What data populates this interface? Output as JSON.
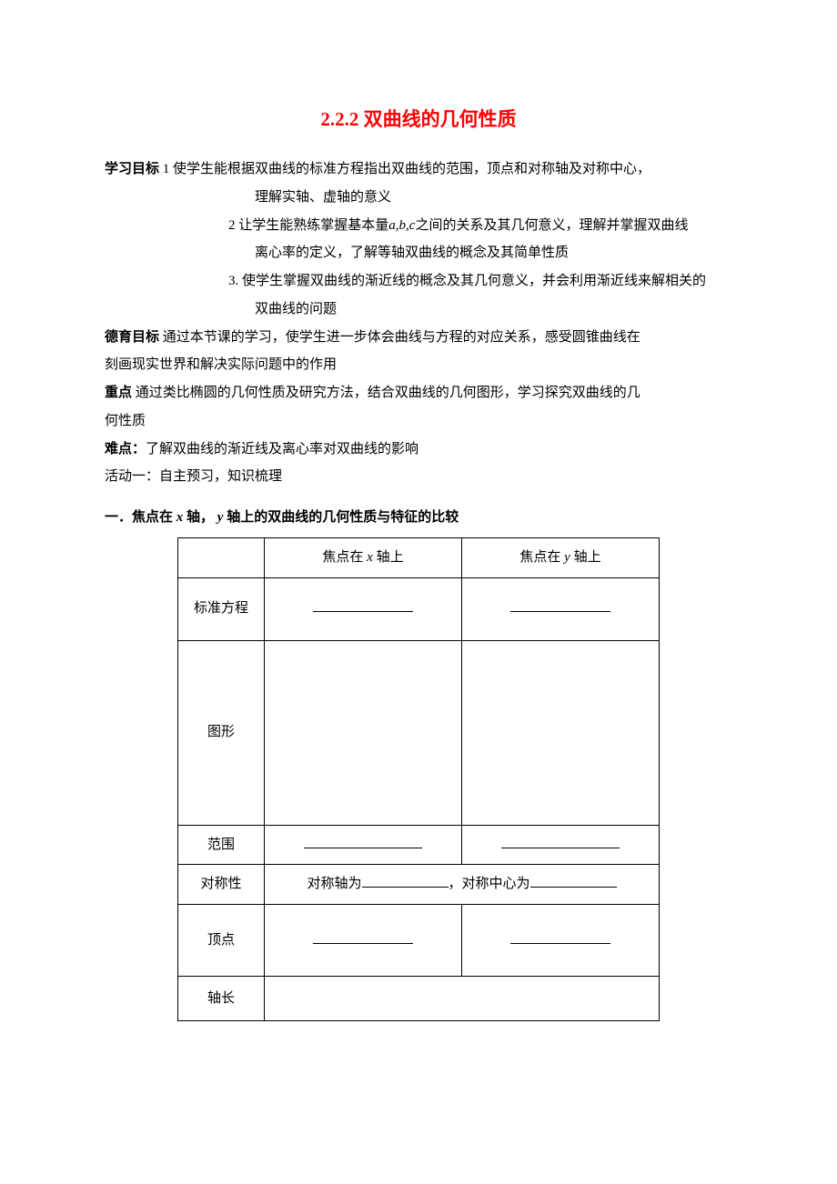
{
  "title": "2.2.2 双曲线的几何性质",
  "goals": {
    "label": "学习目标",
    "g1_prefix": " 1 使学生能根据双曲线的标准方程指出双曲线的范围，顶点和对称轴及对称中心，",
    "g1_cont": "理解实轴、虚轴的意义",
    "g2_prefix": "2 让学生能熟练掌握基本量",
    "g2_abc": "a,b,c",
    "g2_mid": "之间的关系及其几何意义，理解并掌握双曲线",
    "g2_cont": "离心率的定义，了解等轴双曲线的概念及其简单性质",
    "g3_prefix": "3. 使学生掌握双曲线的渐近线的概念及其几何意义，并会利用渐近线来解相关的",
    "g3_cont": "双曲线的问题"
  },
  "moral": {
    "label": "德育目标",
    "line1": " 通过本节课的学习，使学生进一步体会曲线与方程的对应关系，感受圆锥曲线在",
    "line2": "刻画现实世界和解决实际问题中的作用"
  },
  "key": {
    "label": "重点",
    "line1": " 通过类比椭圆的几何性质及研究方法，结合双曲线的几何图形，学习探究双曲线的几",
    "line2": "何性质"
  },
  "hard": {
    "label": "难点：",
    "text": "了解双曲线的渐近线及离心率对双曲线的影响"
  },
  "activity": "活动一：自主预习，知识梳理",
  "section1": {
    "prefix": "一．焦点在",
    "x": " x ",
    "mid": "轴，",
    "y": " y ",
    "suffix": "轴上的双曲线的几何性质与特征的比较"
  },
  "table": {
    "head_x_pre": "焦点在",
    "head_x": " x ",
    "head_x_post": "轴上",
    "head_y_pre": "焦点在",
    "head_y": " y ",
    "head_y_post": "轴上",
    "row_eq": "标准方程",
    "row_fig": "图形",
    "row_range": "范围",
    "row_sym": "对称性",
    "sym_pre": "对称轴为",
    "sym_mid": "，对称中心为",
    "row_vertex": "顶点",
    "row_axis": "轴长"
  }
}
